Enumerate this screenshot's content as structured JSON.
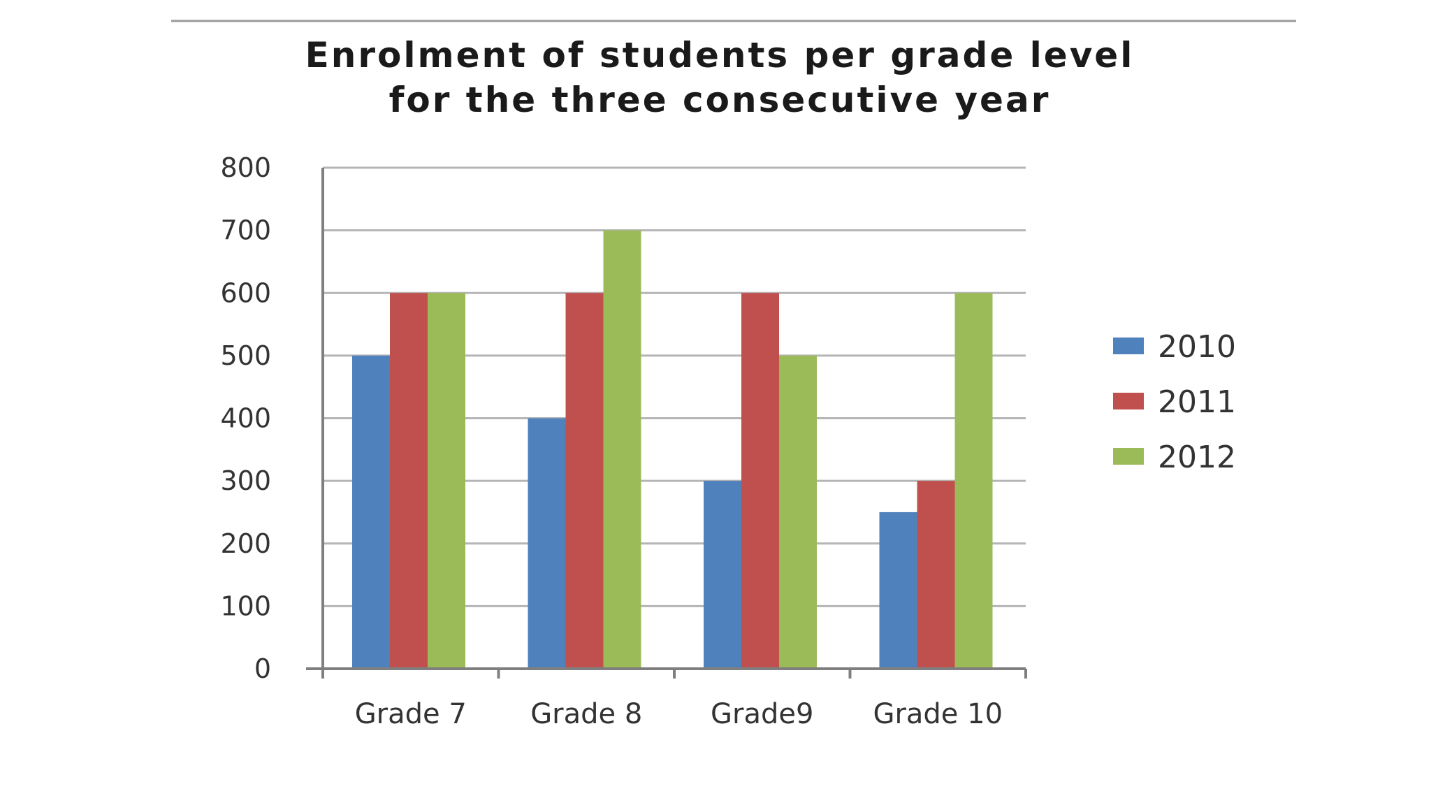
{
  "chart_data": {
    "type": "bar",
    "title_lines": [
      "Enrolment of students per grade level",
      "for the three consecutive year"
    ],
    "categories": [
      "Grade 7",
      "Grade 8",
      "Grade9",
      "Grade 10"
    ],
    "series": [
      {
        "name": "2010",
        "values": [
          500,
          400,
          300,
          250
        ],
        "color": "#4F81BD"
      },
      {
        "name": "2011",
        "values": [
          600,
          600,
          600,
          300
        ],
        "color": "#C0504D"
      },
      {
        "name": "2012",
        "values": [
          600,
          700,
          500,
          600
        ],
        "color": "#9BBB59"
      }
    ],
    "yticks": [
      "0",
      "100",
      "200",
      "300",
      "400",
      "500",
      "600",
      "700",
      "800"
    ],
    "ylim": [
      0,
      800
    ],
    "grid": true,
    "legend_position": "right",
    "xlabel": "",
    "ylabel": ""
  }
}
